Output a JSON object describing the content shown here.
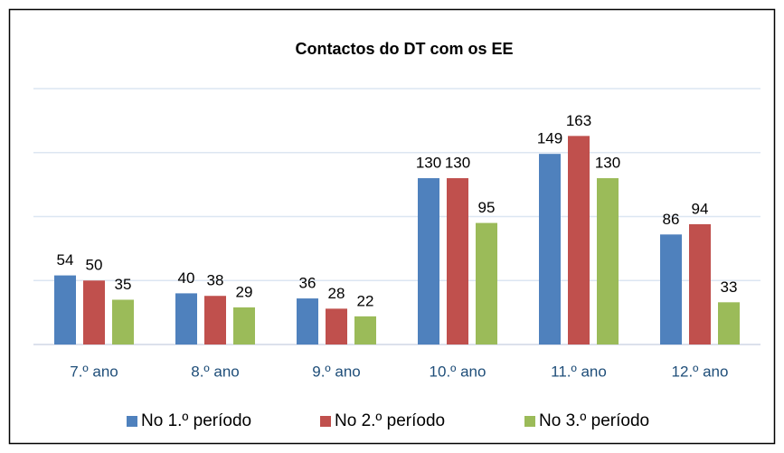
{
  "chart_data": {
    "type": "bar",
    "title": "Contactos do DT com os EE",
    "categories": [
      "7.º ano",
      "8.º ano",
      "9.º ano",
      "10.º ano",
      "11.º ano",
      "12.º ano"
    ],
    "series": [
      {
        "name": "No 1.º período",
        "color": "#4f81bd",
        "values": [
          54,
          40,
          36,
          130,
          149,
          86
        ]
      },
      {
        "name": "No 2.º período",
        "color": "#c0504d",
        "values": [
          50,
          38,
          28,
          130,
          163,
          94
        ]
      },
      {
        "name": "No 3.º período",
        "color": "#9bbb59",
        "values": [
          35,
          29,
          22,
          95,
          130,
          33
        ]
      }
    ],
    "ylim": [
      0,
      200
    ],
    "yticks": [
      0,
      50,
      100,
      150,
      200
    ],
    "grid": true,
    "legend": "bottom"
  }
}
